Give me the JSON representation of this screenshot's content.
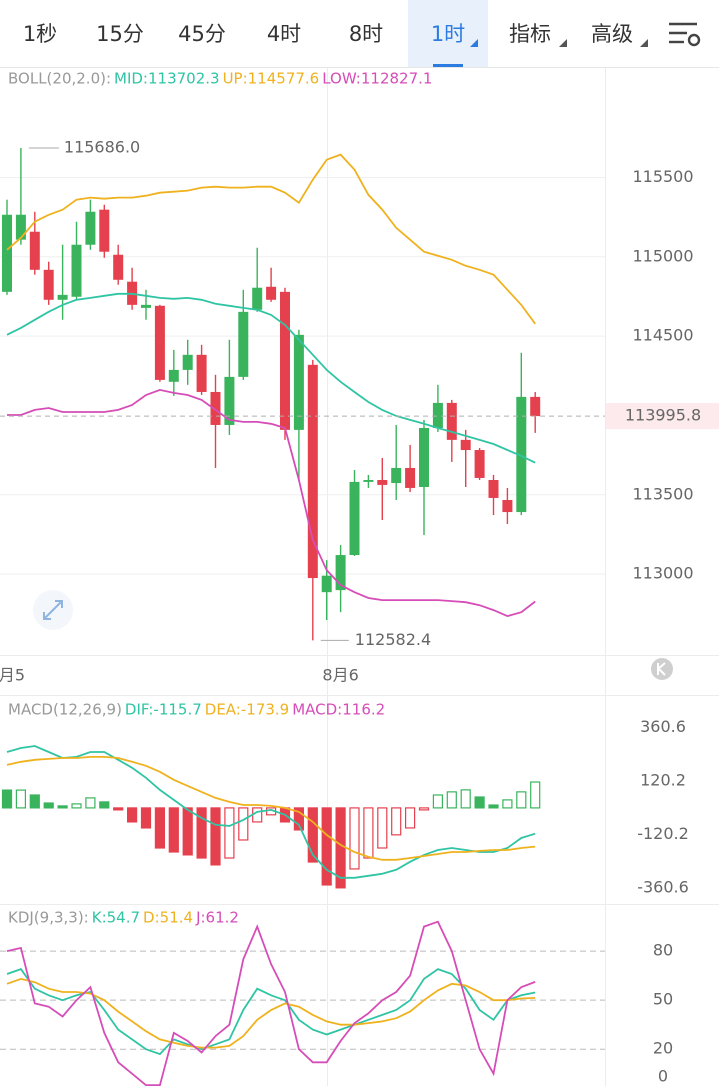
{
  "tabs": [
    {
      "label": "1秒"
    },
    {
      "label": "15分"
    },
    {
      "label": "45分"
    },
    {
      "label": "4时"
    },
    {
      "label": "8时"
    },
    {
      "label": "1时",
      "active": true
    },
    {
      "label": "指标"
    },
    {
      "label": "高级"
    }
  ],
  "chart_data": [
    {
      "type": "candlestick",
      "legend": [
        {
          "text": "BOLL(20,2.0):",
          "color": "#999999"
        },
        {
          "text": "MID:113702.3",
          "color": "#2fc4a4"
        },
        {
          "text": "UP:114577.6",
          "color": "#efb21e"
        },
        {
          "text": "LOW:112827.1",
          "color": "#d64db8"
        }
      ],
      "categories": [
        "月5",
        null,
        null,
        null,
        null,
        null,
        null,
        null,
        null,
        null,
        null,
        null,
        null,
        null,
        null,
        null,
        null,
        null,
        null,
        null,
        null,
        null,
        null,
        null,
        "8月6",
        null,
        null,
        null,
        null,
        null,
        null,
        null,
        null,
        null,
        null,
        null,
        null,
        null,
        null
      ],
      "open": [
        114779,
        115108,
        115158,
        114918,
        114729,
        114748,
        115076,
        115297,
        115013,
        114843,
        114678,
        114691,
        114212,
        114287,
        114382,
        114148,
        113940,
        114243,
        114666,
        114811,
        114779,
        113909,
        114319,
        112886,
        112899,
        113120,
        113581,
        113593,
        113574,
        113669,
        113549,
        113921,
        114079,
        113846,
        113782,
        113593,
        113467,
        113391,
        114117
      ],
      "high": [
        115360,
        115686,
        115284,
        114969,
        115076,
        115221,
        115360,
        115328,
        115076,
        114931,
        114792,
        114697,
        114413,
        114477,
        114445,
        114256,
        114477,
        114792,
        115057,
        114931,
        114805,
        114540,
        114350,
        113088,
        113183,
        113656,
        113625,
        113732,
        113940,
        113814,
        113972,
        114193,
        114098,
        113909,
        113795,
        113625,
        113543,
        114395,
        114148
      ],
      "low": [
        114760,
        115076,
        114887,
        114697,
        114603,
        114729,
        115044,
        114994,
        114824,
        114666,
        114603,
        114212,
        114123,
        114193,
        114129,
        113669,
        113877,
        114224,
        114653,
        114716,
        113846,
        113593,
        112582.4,
        112710,
        112760,
        113114,
        113543,
        113341,
        113467,
        113517,
        113246,
        113896,
        113707,
        113549,
        113593,
        113372,
        113316,
        113372,
        113890
      ],
      "close": [
        115265,
        115265,
        114918,
        114729,
        114760,
        115076,
        115284,
        115032,
        114855,
        114697,
        114697,
        114224,
        114287,
        114382,
        114148,
        113940,
        114243,
        114653,
        114805,
        114729,
        113909,
        114508,
        112975,
        112990,
        113120,
        113581,
        113593,
        113562,
        113669,
        113543,
        113921,
        114079,
        113846,
        113782,
        113606,
        113480,
        113391,
        114117,
        113995.8
      ],
      "up_color": "#3ab45c",
      "down_color": "#e5404e",
      "lines": [
        {
          "color": "#efb21e",
          "values": [
            115044,
            115120,
            115221,
            115265,
            115297,
            115360,
            115373,
            115366,
            115373,
            115373,
            115385,
            115404,
            115410,
            115417,
            115436,
            115442,
            115436,
            115436,
            115442,
            115442,
            115404,
            115341,
            115486,
            115612,
            115644,
            115549,
            115391,
            115297,
            115183,
            115108,
            115032,
            115006,
            114981,
            114943,
            114918,
            114887,
            114792,
            114697,
            114577.6
          ]
        },
        {
          "color": "#2fc4a4",
          "values": [
            114508,
            114552,
            114603,
            114653,
            114697,
            114729,
            114741,
            114754,
            114767,
            114767,
            114754,
            114741,
            114735,
            114741,
            114729,
            114704,
            114691,
            114678,
            114666,
            114634,
            114571,
            114477,
            114382,
            114287,
            114212,
            114148,
            114085,
            114035,
            113997,
            113972,
            113947,
            113921,
            113896,
            113871,
            113846,
            113820,
            113782,
            113745,
            113702.3
          ]
        },
        {
          "color": "#d64db8",
          "values": [
            114003,
            114003,
            114035,
            114047,
            114022,
            114022,
            114022,
            114022,
            114035,
            114066,
            114129,
            114161,
            114142,
            114129,
            114098,
            114035,
            113972,
            113959,
            113959,
            113947,
            113921,
            113593,
            113215,
            113025,
            112931,
            112886,
            112849,
            112836,
            112836,
            112836,
            112836,
            112836,
            112830,
            112823,
            112804,
            112773,
            112735,
            112760,
            112827.1
          ]
        }
      ],
      "max_label": {
        "value": 115686,
        "label": "115686.0"
      },
      "min_label": 112582.4,
      "current_price": 113995.8,
      "ylim": [
        112490,
        116190
      ],
      "yticks": [
        113000,
        113500,
        114500,
        115000,
        115500
      ],
      "grid": true
    },
    {
      "type": "macd",
      "legend": [
        {
          "text": "MACD(12,26,9)",
          "color": "#999999"
        },
        {
          "text": "DIF:-115.7",
          "color": "#2fc4a4"
        },
        {
          "text": "DEA:-173.9",
          "color": "#efb21e"
        },
        {
          "text": "MACD:116.2",
          "color": "#d64db8"
        }
      ],
      "values": [
        80,
        80,
        58,
        22,
        9,
        18,
        45,
        27,
        -9,
        -63,
        -90,
        -180,
        -198,
        -211,
        -225,
        -256,
        -225,
        -144,
        -63,
        -31,
        -63,
        -99,
        -243,
        -346,
        -359,
        -274,
        -225,
        -180,
        -121,
        -90,
        -9,
        58,
        72,
        81,
        49,
        13,
        36,
        72,
        116.2
      ],
      "up_color": "#3ab45c",
      "down_color": "#e5404e",
      "lines": [
        {
          "color": "#2fc4a4",
          "values": [
            251,
            269,
            278,
            251,
            224,
            229,
            251,
            251,
            216,
            180,
            135,
            81,
            36,
            -9,
            -45,
            -76,
            -81,
            -54,
            -18,
            -9,
            -31,
            -76,
            -211,
            -278,
            -314,
            -314,
            -305,
            -296,
            -278,
            -242,
            -211,
            -189,
            -180,
            -189,
            -198,
            -198,
            -180,
            -135,
            -115.7
          ]
        },
        {
          "color": "#efb21e",
          "values": [
            193,
            207,
            216,
            220,
            224,
            224,
            229,
            229,
            224,
            207,
            189,
            162,
            126,
            99,
            72,
            45,
            27,
            13,
            13,
            9,
            0,
            -18,
            -63,
            -121,
            -166,
            -198,
            -220,
            -233,
            -233,
            -225,
            -216,
            -207,
            -198,
            -198,
            -193,
            -189,
            -189,
            -180,
            -173.9
          ]
        }
      ],
      "ylim": [
        -427,
        498
      ],
      "yticks": [
        360.6,
        120.2,
        -120.2,
        -360.6
      ]
    },
    {
      "type": "line",
      "legend": [
        {
          "text": "KDJ(9,3,3):",
          "color": "#999999"
        },
        {
          "text": "K:54.7",
          "color": "#2fc4a4"
        },
        {
          "text": "D:51.4",
          "color": "#efb21e"
        },
        {
          "text": "J:61.2",
          "color": "#d64db8"
        }
      ],
      "lines": [
        {
          "color": "#2fc4a4",
          "values": [
            66,
            69,
            57,
            53,
            50,
            53,
            55,
            44,
            32,
            26,
            20,
            17,
            26,
            23,
            20,
            23,
            26,
            44,
            57,
            53,
            50,
            38,
            32,
            29,
            32,
            35,
            38,
            41,
            44,
            50,
            63,
            69,
            66,
            57,
            44,
            38,
            50,
            53,
            54.7
          ]
        },
        {
          "color": "#efb21e",
          "values": [
            60,
            63,
            61,
            57,
            55,
            55,
            54,
            50,
            43,
            37,
            31,
            26,
            24,
            22,
            21,
            21,
            22,
            28,
            38,
            44,
            48,
            46,
            41,
            37,
            35,
            35,
            36,
            37,
            39,
            43,
            50,
            56,
            60,
            59,
            55,
            50,
            50,
            51,
            51.4
          ]
        },
        {
          "color": "#d64db8",
          "values": [
            80,
            82,
            48,
            46,
            40,
            50,
            58,
            30,
            12,
            5,
            -2,
            -2,
            30,
            25,
            18,
            28,
            35,
            75,
            95,
            72,
            55,
            20,
            12,
            12,
            25,
            36,
            42,
            50,
            55,
            65,
            95,
            98,
            80,
            50,
            20,
            5,
            50,
            58,
            61.2
          ]
        }
      ],
      "ylim": [
        -2.5,
        107
      ],
      "yticks": [
        0,
        20,
        50,
        80
      ],
      "dashed_grid": [
        20,
        50,
        80
      ]
    }
  ]
}
